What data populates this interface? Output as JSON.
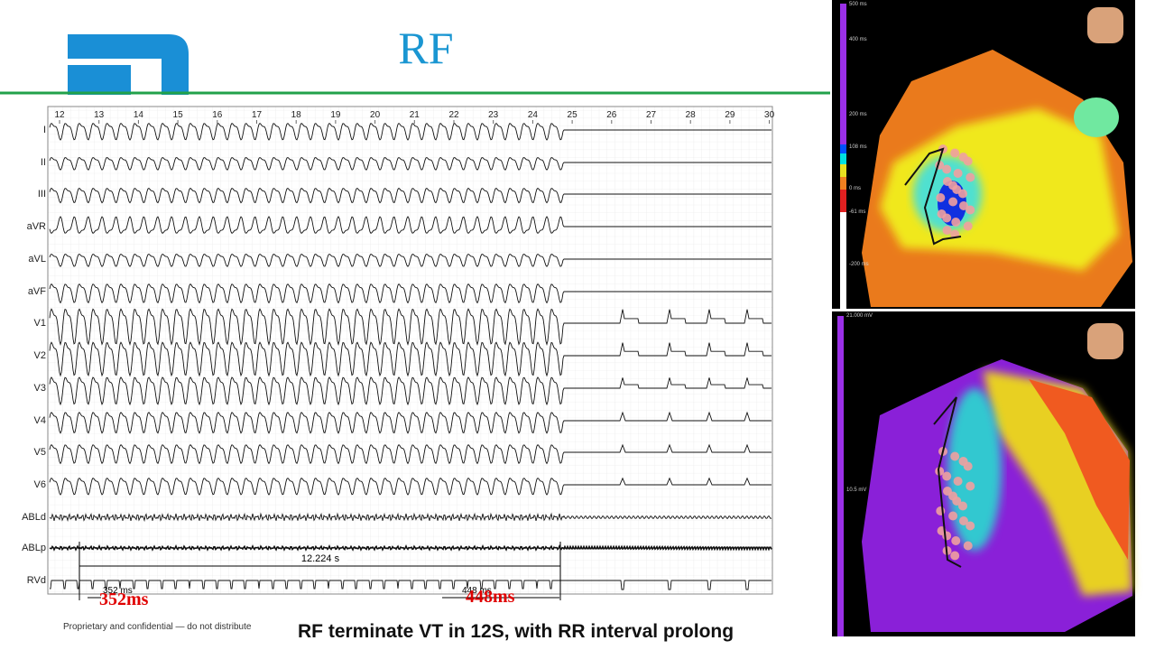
{
  "title": "RF",
  "ecg": {
    "time_labels": [
      12,
      13,
      14,
      15,
      16,
      17,
      18,
      19,
      20,
      21,
      22,
      23,
      24,
      25,
      26,
      27,
      28,
      29,
      30
    ],
    "leads": [
      "I",
      "II",
      "III",
      "aVR",
      "aVL",
      "aVF",
      "V1",
      "V2",
      "V3",
      "V4",
      "V5",
      "V6",
      "ABLd",
      "ABLp",
      "RVd"
    ],
    "total_interval": "12.224 s",
    "first_interval": "352 ms",
    "first_interval_callout": "352ms",
    "last_interval": "448 ms",
    "last_interval_callout": "448ms"
  },
  "footer": "Proprietary and confidential — do not distribute",
  "caption": "RF terminate VT in 12S, with RR interval prolong",
  "activation_map": {
    "scale_labels": [
      "500 ms",
      "400 ms",
      "200 ms",
      "108 ms",
      "0 ms",
      "-61 ms",
      "-200 ms"
    ]
  },
  "voltage_map": {
    "scale_labels": [
      "21.000 mV",
      "10.5 mV"
    ]
  }
}
